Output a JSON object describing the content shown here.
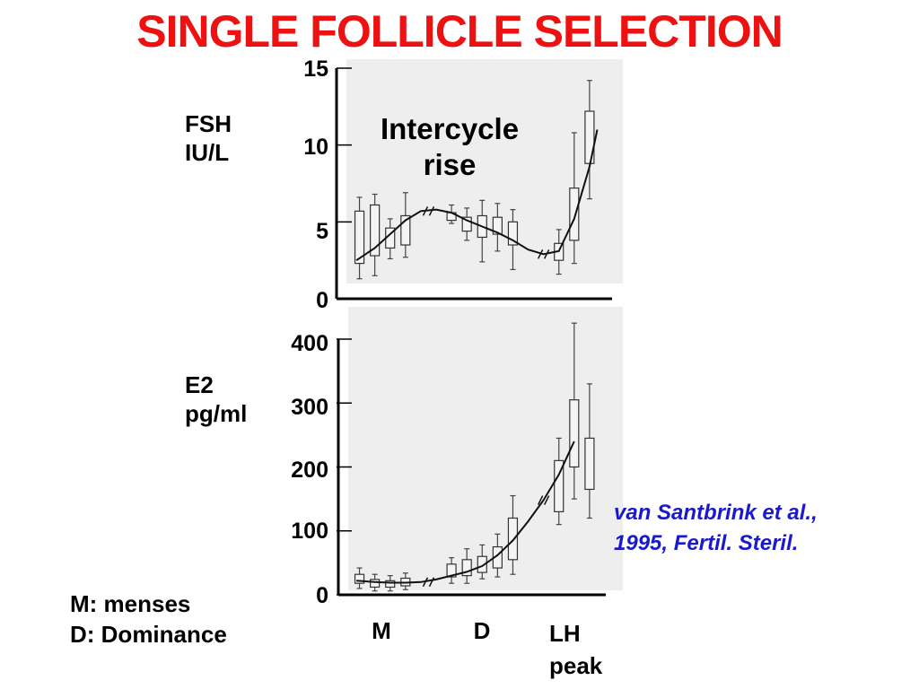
{
  "title": "SINGLE FOLLICLE SELECTION",
  "colors": {
    "title": "#ee1111",
    "citation": "#1a1acc",
    "text": "#000000",
    "panel_bg": "#eeeeee"
  },
  "citation": {
    "line1": "van Santbrink et al.,",
    "line2": "1995, Fertil. Steril."
  },
  "legend": {
    "m": "M: menses",
    "d": "D: Dominance"
  },
  "x_categories": {
    "m": "M",
    "d": "D",
    "lh1": "LH",
    "lh2": "peak"
  },
  "chart_data": [
    {
      "type": "box",
      "ylabel_line1": "FSH",
      "ylabel_line2": "IU/L",
      "ylim": [
        0,
        15
      ],
      "yticks": [
        "0",
        "5",
        "10",
        "15"
      ],
      "annotation": {
        "line1": "Intercycle",
        "line2": "rise"
      },
      "boxes": [
        {
          "x": 1,
          "q1": 2.3,
          "q3": 5.7,
          "wlo": 1.3,
          "whi": 6.6
        },
        {
          "x": 2,
          "q1": 2.8,
          "q3": 6.1,
          "wlo": 1.5,
          "whi": 6.8
        },
        {
          "x": 3,
          "q1": 3.3,
          "q3": 4.6,
          "wlo": 2.6,
          "whi": 5.2
        },
        {
          "x": 4,
          "q1": 3.5,
          "q3": 5.4,
          "wlo": 2.7,
          "whi": 6.9
        },
        {
          "x": 7,
          "q1": 5.1,
          "q3": 5.6,
          "wlo": 4.9,
          "whi": 6.1
        },
        {
          "x": 8,
          "q1": 4.4,
          "q3": 5.3,
          "wlo": 3.8,
          "whi": 5.9
        },
        {
          "x": 9,
          "q1": 4.0,
          "q3": 5.4,
          "wlo": 2.4,
          "whi": 6.4
        },
        {
          "x": 10,
          "q1": 4.2,
          "q3": 5.3,
          "wlo": 3.1,
          "whi": 6.2
        },
        {
          "x": 11,
          "q1": 3.5,
          "q3": 5.0,
          "wlo": 1.9,
          "whi": 5.8
        },
        {
          "x": 14,
          "q1": 2.5,
          "q3": 3.6,
          "wlo": 1.6,
          "whi": 4.5
        },
        {
          "x": 15,
          "q1": 3.8,
          "q3": 7.2,
          "wlo": 2.3,
          "whi": 10.8
        },
        {
          "x": 16,
          "q1": 8.8,
          "q3": 12.2,
          "wlo": 6.5,
          "whi": 14.2
        }
      ],
      "trend": [
        [
          0.8,
          2.5
        ],
        [
          2,
          3.3
        ],
        [
          3,
          4.2
        ],
        [
          4,
          5.1
        ],
        [
          5,
          5.7
        ],
        [
          6,
          5.8
        ],
        [
          7,
          5.6
        ],
        [
          8,
          5.1
        ],
        [
          9,
          4.7
        ],
        [
          10,
          4.3
        ],
        [
          11,
          3.8
        ],
        [
          12,
          3.2
        ],
        [
          13,
          2.9
        ],
        [
          14,
          3.1
        ],
        [
          15,
          5.2
        ],
        [
          16,
          8.6
        ],
        [
          16.5,
          11.0
        ]
      ]
    },
    {
      "type": "box",
      "ylabel_line1": "E2",
      "ylabel_line2": "pg/ml",
      "ylim": [
        0,
        400
      ],
      "yticks": [
        "0",
        "100",
        "200",
        "300",
        "400"
      ],
      "boxes": [
        {
          "x": 1,
          "q1": 18,
          "q3": 32,
          "wlo": 10,
          "whi": 42
        },
        {
          "x": 2,
          "q1": 12,
          "q3": 24,
          "wlo": 6,
          "whi": 32
        },
        {
          "x": 3,
          "q1": 12,
          "q3": 22,
          "wlo": 6,
          "whi": 30
        },
        {
          "x": 4,
          "q1": 14,
          "q3": 26,
          "wlo": 8,
          "whi": 34
        },
        {
          "x": 7,
          "q1": 28,
          "q3": 48,
          "wlo": 18,
          "whi": 58
        },
        {
          "x": 8,
          "q1": 30,
          "q3": 55,
          "wlo": 18,
          "whi": 72
        },
        {
          "x": 9,
          "q1": 35,
          "q3": 60,
          "wlo": 25,
          "whi": 78
        },
        {
          "x": 10,
          "q1": 42,
          "q3": 75,
          "wlo": 28,
          "whi": 95
        },
        {
          "x": 11,
          "q1": 55,
          "q3": 120,
          "wlo": 32,
          "whi": 155
        },
        {
          "x": 14,
          "q1": 130,
          "q3": 210,
          "wlo": 110,
          "whi": 245
        },
        {
          "x": 15,
          "q1": 200,
          "q3": 305,
          "wlo": 150,
          "whi": 425
        },
        {
          "x": 16,
          "q1": 165,
          "q3": 245,
          "wlo": 120,
          "whi": 330
        }
      ],
      "trend": [
        [
          0.8,
          22
        ],
        [
          2,
          20
        ],
        [
          3,
          19
        ],
        [
          4,
          19
        ],
        [
          5,
          20
        ],
        [
          6,
          24
        ],
        [
          7,
          30
        ],
        [
          8,
          36
        ],
        [
          9,
          45
        ],
        [
          10,
          62
        ],
        [
          11,
          85
        ],
        [
          12,
          115
        ],
        [
          13,
          148
        ],
        [
          14,
          188
        ],
        [
          15,
          240
        ]
      ]
    }
  ]
}
